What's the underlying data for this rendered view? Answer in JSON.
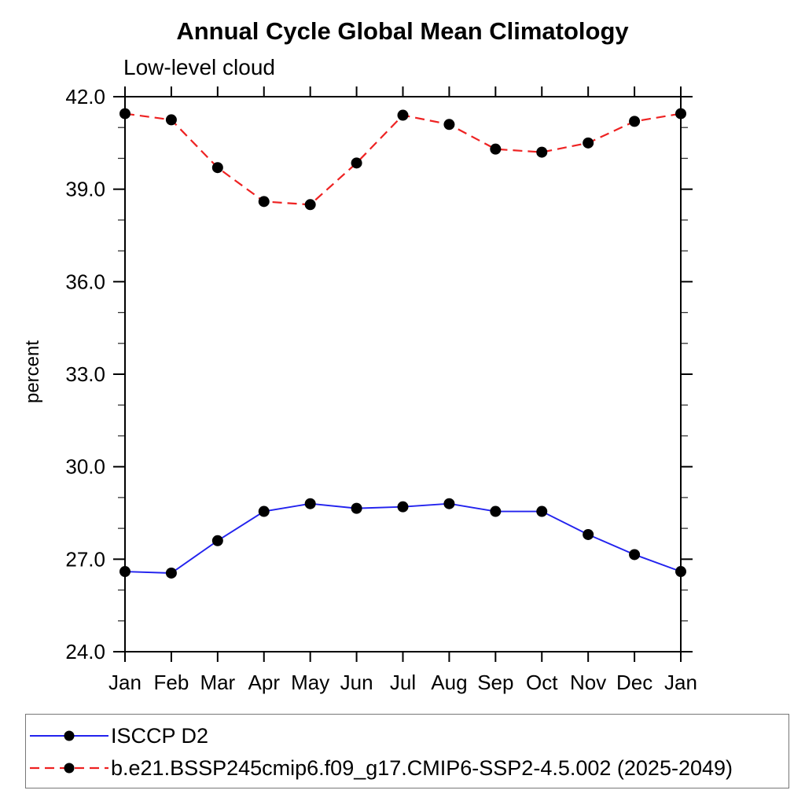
{
  "title": "Annual Cycle Global Mean Climatology",
  "subtitle": "Low-level cloud",
  "legend": {
    "entries": [
      {
        "label": "ISCCP D2",
        "color": "#2222ee",
        "style": "solid"
      },
      {
        "label": "b.e21.BSSP245cmip6.f09_g17.CMIP6-SSP2-4.5.002 (2025-2049)",
        "color": "#ee2222",
        "style": "dashed"
      }
    ]
  },
  "chart_data": {
    "type": "line",
    "title": "Annual Cycle Global Mean Climatology",
    "subtitle": "Low-level cloud",
    "xlabel": "",
    "ylabel": "percent",
    "categories": [
      "Jan",
      "Feb",
      "Mar",
      "Apr",
      "May",
      "Jun",
      "Jul",
      "Aug",
      "Sep",
      "Oct",
      "Nov",
      "Dec",
      "Jan"
    ],
    "series": [
      {
        "name": "ISCCP D2",
        "color": "#2222ee",
        "line_style": "solid",
        "marker": "filled-circle",
        "marker_color": "#000000",
        "values": [
          26.6,
          26.55,
          27.6,
          28.55,
          28.8,
          28.65,
          28.7,
          28.8,
          28.55,
          28.55,
          27.8,
          27.15,
          26.6
        ]
      },
      {
        "name": "b.e21.BSSP245cmip6.f09_g17.CMIP6-SSP2-4.5.002 (2025-2049)",
        "color": "#ee2222",
        "line_style": "dashed",
        "marker": "filled-circle",
        "marker_color": "#000000",
        "values": [
          41.45,
          41.25,
          39.7,
          38.6,
          38.5,
          39.85,
          41.4,
          41.1,
          40.3,
          40.2,
          40.5,
          41.2,
          41.45
        ]
      }
    ],
    "ylim": [
      24,
      42
    ],
    "ytick_major": [
      24,
      27,
      30,
      33,
      36,
      39,
      42
    ],
    "ytick_labels": [
      "24.0",
      "27.0",
      "30.0",
      "33.0",
      "36.0",
      "39.0",
      "42.0"
    ],
    "ytick_minor_step": 1,
    "grid": false,
    "legend_position": "bottom-left-box",
    "axis_color": "#000000"
  }
}
